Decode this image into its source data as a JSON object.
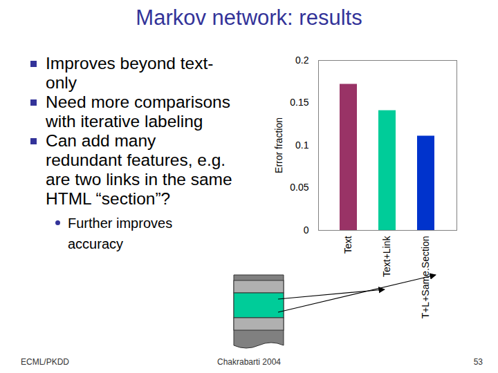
{
  "slide": {
    "title": "Markov network: results",
    "bullets": [
      {
        "text": "Improves beyond text-only",
        "sub": []
      },
      {
        "text": "Need more comparisons with iterative labeling",
        "sub": []
      },
      {
        "text": "Can add many redundant features, e.g. are two links in the same HTML “section”?",
        "sub": [
          "Further improves accuracy"
        ]
      }
    ],
    "footer": {
      "left": "ECML/PKDD",
      "center": "Chakrabarti 2004",
      "right": "53"
    }
  },
  "chart_data": {
    "type": "bar",
    "y_label": "Error fraction",
    "categories": [
      "Text",
      "Text+Link",
      "T+L+Same.Section"
    ],
    "values": [
      0.172,
      0.141,
      0.111
    ],
    "colors": [
      "#993366",
      "#00cc99",
      "#0033cc"
    ],
    "ylim": [
      0,
      0.2
    ],
    "yticks": [
      0,
      0.05,
      0.1,
      0.15,
      0.2
    ],
    "grid": false
  }
}
